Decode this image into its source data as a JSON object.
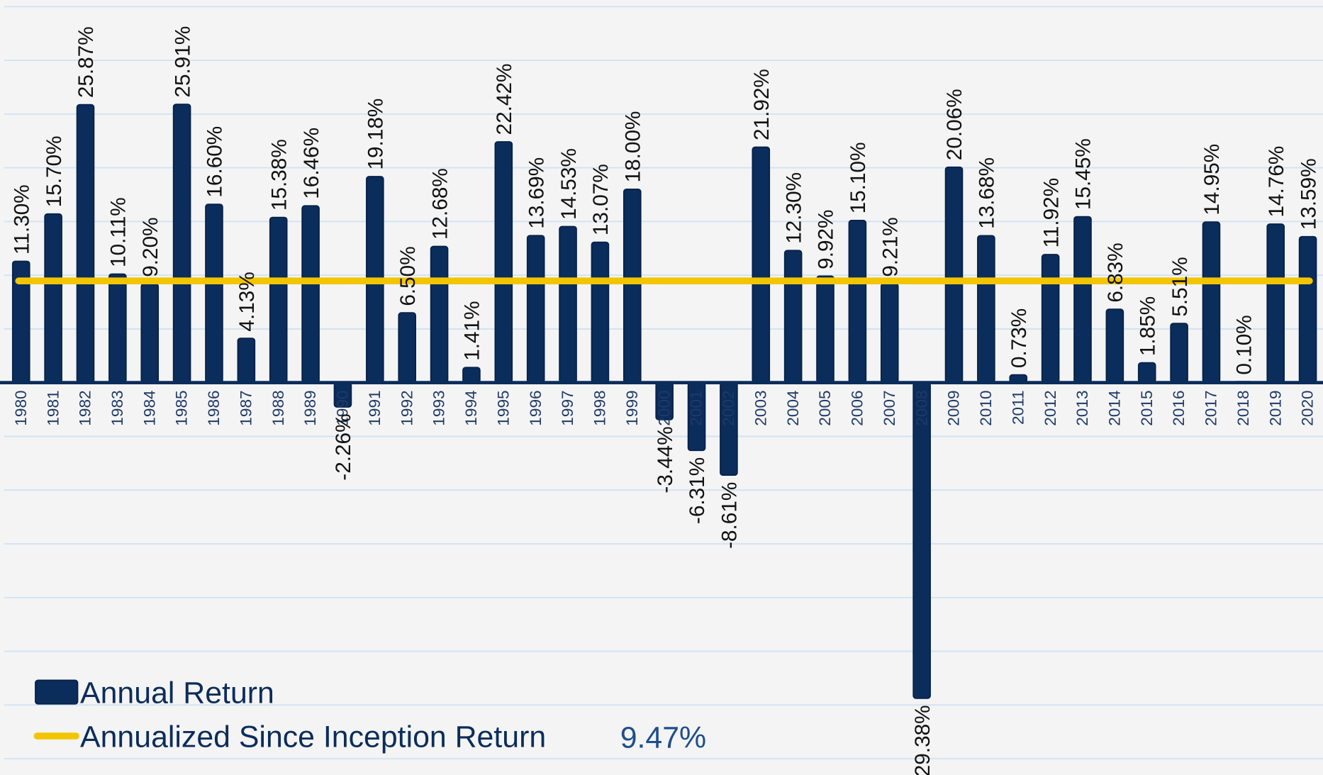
{
  "chart_data": {
    "type": "bar",
    "categories": [
      "1980",
      "1981",
      "1982",
      "1983",
      "1984",
      "1985",
      "1986",
      "1987",
      "1988",
      "1989",
      "1990",
      "1991",
      "1992",
      "1993",
      "1994",
      "1995",
      "1996",
      "1997",
      "1998",
      "1999",
      "2000",
      "2001",
      "2002",
      "2003",
      "2004",
      "2005",
      "2006",
      "2007",
      "2008",
      "2009",
      "2010",
      "2011",
      "2012",
      "2013",
      "2014",
      "2015",
      "2016",
      "2017",
      "2018",
      "2019",
      "2020"
    ],
    "series": [
      {
        "name": "Annual Return",
        "color": "#0b2d5b",
        "values": [
          11.3,
          15.7,
          25.87,
          10.11,
          9.2,
          25.91,
          16.6,
          4.13,
          15.38,
          16.46,
          -2.26,
          19.18,
          6.5,
          12.68,
          1.41,
          22.42,
          13.69,
          14.53,
          13.07,
          18.0,
          -3.44,
          -6.31,
          -8.61,
          21.92,
          12.3,
          9.92,
          15.1,
          9.21,
          -29.38,
          20.06,
          13.68,
          0.73,
          11.92,
          15.45,
          6.83,
          1.85,
          5.51,
          14.95,
          0.1,
          14.76,
          13.59
        ],
        "value_labels": [
          "11.30%",
          "15.70%",
          "25.87%",
          "10.11%",
          "9.20%",
          "25.91%",
          "16.60%",
          "4.13%",
          "15.38%",
          "16.46%",
          "-2.26%",
          "19.18%",
          "6.50%",
          "12.68%",
          "1.41%",
          "22.42%",
          "13.69%",
          "14.53%",
          "13.07%",
          "18.00%",
          "-3.44%",
          "-6.31%",
          "-8.61%",
          "21.92%",
          "12.30%",
          "9.92%",
          "15.10%",
          "9.21%",
          "-29.38%",
          "20.06%",
          "13.68%",
          "0.73%",
          "11.92%",
          "15.45%",
          "6.83%",
          "1.85%",
          "5.51%",
          "14.95%",
          "0.10%",
          "14.76%",
          "13.59%"
        ]
      },
      {
        "name": "Annualized Since Inception Return",
        "color": "#f2c500",
        "type": "line",
        "value": 9.47,
        "value_label": "9.47%"
      }
    ],
    "ylim": [
      -36.5,
      35.6
    ],
    "yticks": [
      -35,
      -30,
      -25,
      -20,
      -15,
      -10,
      -5,
      0,
      5,
      10,
      15,
      20,
      25,
      30,
      35
    ],
    "grid": true,
    "legend": "lower left"
  }
}
